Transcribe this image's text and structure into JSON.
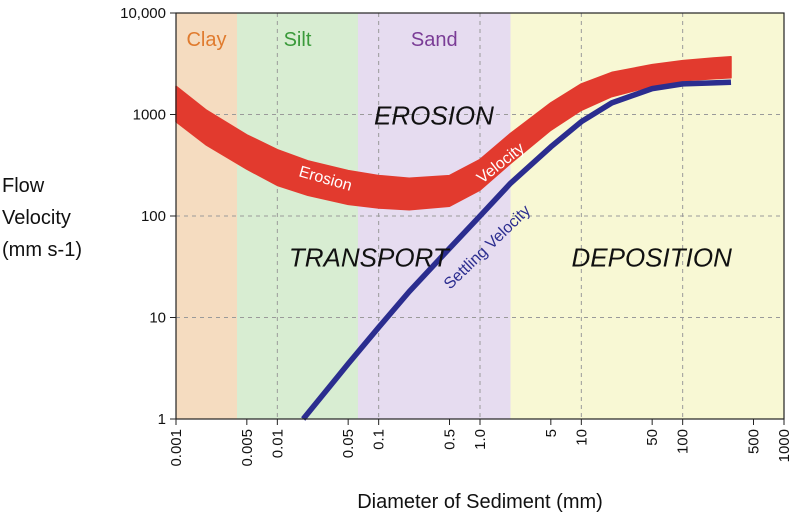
{
  "chart_data": {
    "type": "line",
    "x_scale": "log",
    "y_scale": "log",
    "xlim": [
      0.001,
      1000
    ],
    "ylim": [
      1,
      10000
    ],
    "grid": true,
    "xlabel": "Diameter of Sediment (mm)",
    "ylabel_lines": [
      "Flow",
      "Velocity",
      "(mm s-1)"
    ],
    "x_ticks": [
      {
        "value": 0.001,
        "label": "0.001"
      },
      {
        "value": 0.005,
        "label": "0.005"
      },
      {
        "value": 0.01,
        "label": "0.01"
      },
      {
        "value": 0.05,
        "label": "0.05"
      },
      {
        "value": 0.1,
        "label": "0.1"
      },
      {
        "value": 0.5,
        "label": "0.5"
      },
      {
        "value": 1.0,
        "label": "1.0"
      },
      {
        "value": 5,
        "label": "5"
      },
      {
        "value": 10,
        "label": "10"
      },
      {
        "value": 50,
        "label": "50"
      },
      {
        "value": 100,
        "label": "100"
      },
      {
        "value": 500,
        "label": "500"
      },
      {
        "value": 1000,
        "label": "1000"
      }
    ],
    "y_ticks": [
      {
        "value": 1,
        "label": "1"
      },
      {
        "value": 10,
        "label": "10"
      },
      {
        "value": 100,
        "label": "100"
      },
      {
        "value": 1000,
        "label": "1000"
      },
      {
        "value": 10000,
        "label": "10,000"
      }
    ],
    "bands": [
      {
        "name": "Clay",
        "from": 0.001,
        "to": 0.004,
        "fill": "#f5dcc0",
        "text_color": "#e07b2e"
      },
      {
        "name": "Silt",
        "from": 0.004,
        "to": 0.0625,
        "fill": "#d8edd2",
        "text_color": "#3a9a3a"
      },
      {
        "name": "Sand",
        "from": 0.0625,
        "to": 2,
        "fill": "#e6dcf0",
        "text_color": "#7a3c96"
      },
      {
        "name": "",
        "from": 2,
        "to": 1000,
        "fill": "#f8f8d4",
        "text_color": "#111111"
      }
    ],
    "regions": [
      {
        "label": "EROSION",
        "x": 0.09,
        "y": 1000
      },
      {
        "label": "TRANSPORT",
        "x": 0.013,
        "y": 40
      },
      {
        "label": "DEPOSITION",
        "x": 8,
        "y": 40
      }
    ],
    "series": [
      {
        "name": "Erosion Velocity",
        "color": "#e23a2e",
        "x": [
          0.001,
          0.002,
          0.005,
          0.01,
          0.02,
          0.05,
          0.1,
          0.2,
          0.5,
          1.0,
          2,
          5,
          10,
          20,
          50,
          100,
          200,
          300
        ],
        "y_low": [
          850,
          500,
          290,
          200,
          160,
          130,
          120,
          115,
          125,
          180,
          330,
          700,
          1100,
          1500,
          1900,
          2150,
          2250,
          2300
        ],
        "y_high": [
          1900,
          1100,
          630,
          450,
          350,
          280,
          250,
          235,
          250,
          360,
          650,
          1300,
          2000,
          2600,
          3100,
          3400,
          3600,
          3700
        ],
        "label_parts": [
          "Erosion",
          "Velocity"
        ]
      },
      {
        "name": "Settling Velocity",
        "color": "#2b2d8f",
        "x": [
          0.018,
          0.05,
          0.1,
          0.2,
          0.5,
          1.0,
          2,
          5,
          10,
          20,
          50,
          100,
          200,
          300
        ],
        "y": [
          1,
          3.5,
          8,
          18,
          48,
          100,
          210,
          480,
          850,
          1300,
          1800,
          2000,
          2050,
          2080
        ],
        "label": "Settling Velocity"
      }
    ]
  }
}
